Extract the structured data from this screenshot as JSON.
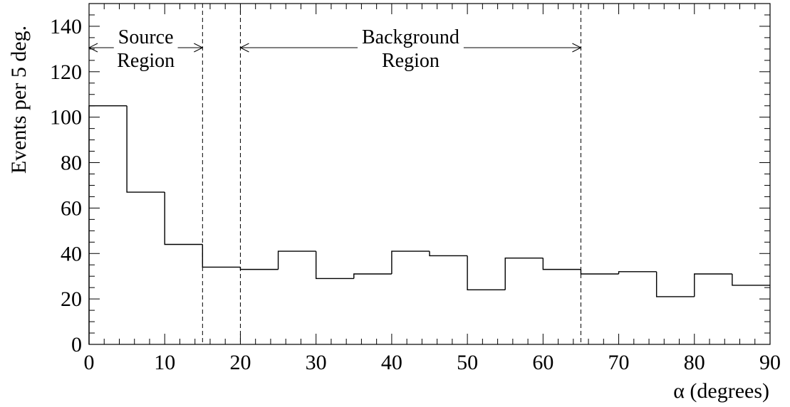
{
  "chart_data": {
    "type": "histogram",
    "title": "",
    "xlabel": "α (degrees)",
    "ylabel": "Events per 5 deg.",
    "xlim": [
      0,
      90
    ],
    "ylim": [
      0,
      150
    ],
    "x_ticks": [
      0,
      10,
      20,
      30,
      40,
      50,
      60,
      70,
      80,
      90
    ],
    "y_ticks": [
      0,
      20,
      40,
      60,
      80,
      100,
      120,
      140
    ],
    "bin_width": 5,
    "bin_edges": [
      0,
      5,
      10,
      15,
      20,
      25,
      30,
      35,
      40,
      45,
      50,
      55,
      60,
      65,
      70,
      75,
      80,
      85,
      90
    ],
    "values": [
      105,
      67,
      44,
      34,
      33,
      41,
      29,
      31,
      41,
      39,
      24,
      38,
      33,
      31,
      32,
      21,
      31,
      26
    ],
    "grid": false,
    "boundaries": [
      15,
      20,
      65
    ],
    "regions": [
      {
        "line1": "Source",
        "line2": "Region",
        "x_start": 0,
        "x_end": 15
      },
      {
        "line1": "Background",
        "line2": "Region",
        "x_start": 20,
        "x_end": 65
      }
    ]
  }
}
